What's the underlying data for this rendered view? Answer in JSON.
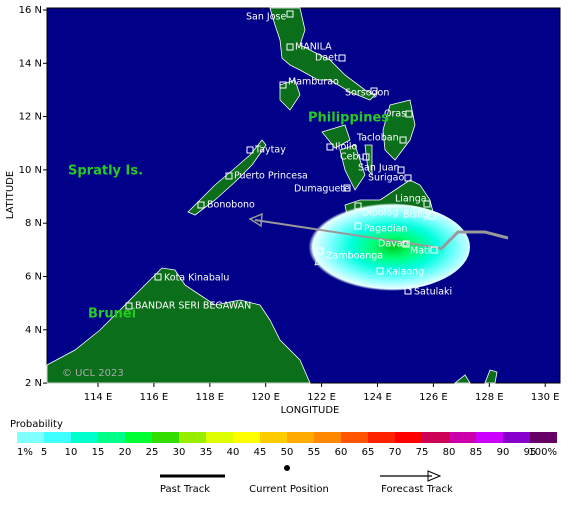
{
  "axes": {
    "x_label": "LONGITUDE",
    "y_label": "LATITUDE",
    "x_ticks": [
      "114 E",
      "116 E",
      "118 E",
      "120 E",
      "122 E",
      "124 E",
      "126 E",
      "128 E",
      "130 E"
    ],
    "y_ticks": [
      "16 N",
      "14 N",
      "12 N",
      "10 N",
      "8 N",
      "6 N",
      "4 N",
      "2 N"
    ]
  },
  "places": [
    "San Jose",
    "MANILA",
    "Daet",
    "Mamburao",
    "Sorsogon",
    "Oras",
    "Tacloban",
    "Iloilo",
    "Cebu",
    "Taytay",
    "San Juan",
    "Surigao",
    "Puerto Princesa",
    "Dumaguete",
    "Lianga",
    "Bonobono",
    "Dipolog",
    "Bislig",
    "Pagadian",
    "Davao",
    "Mati",
    "Zamboanga",
    "Kalaong",
    "Kota Kinabalu",
    "Satulaki",
    "BANDAR SERI BEGAWAN"
  ],
  "regions": [
    "Philippines",
    "Spratly Is.",
    "Brunei"
  ],
  "copyright": "© UCL 2023",
  "legend": {
    "title": "Probability",
    "labels": [
      "1%",
      "5",
      "10",
      "15",
      "20",
      "25",
      "30",
      "35",
      "40",
      "45",
      "50",
      "55",
      "60",
      "65",
      "70",
      "75",
      "80",
      "85",
      "90",
      "95",
      "100%"
    ],
    "colors": [
      "#80ffff",
      "#40ffff",
      "#00ffcc",
      "#00ff88",
      "#00ff33",
      "#33dd00",
      "#99ee00",
      "#ddff00",
      "#ffff00",
      "#ffcc00",
      "#ffaa00",
      "#ff8800",
      "#ff5500",
      "#ff2200",
      "#ff0000",
      "#cc0055",
      "#cc00aa",
      "#cc00ff",
      "#8800cc",
      "#660066"
    ],
    "items": [
      "Past Track",
      "Current Position",
      "Forecast Track"
    ]
  }
}
